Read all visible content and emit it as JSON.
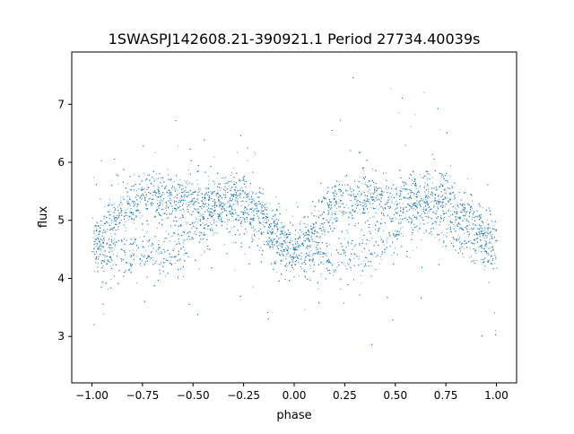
{
  "chart_data": {
    "type": "scatter",
    "title": "1SWASPJ142608.21-390921.1 Period 27734.40039s",
    "xlabel": "phase",
    "ylabel": "flux",
    "xlim": [
      -1.1,
      1.1
    ],
    "ylim": [
      2.2,
      7.9
    ],
    "xticks": [
      -1.0,
      -0.75,
      -0.5,
      -0.25,
      0.0,
      0.25,
      0.5,
      0.75,
      1.0
    ],
    "xtick_labels": [
      "−1.00",
      "−0.75",
      "−0.50",
      "−0.25",
      "0.00",
      "0.25",
      "0.50",
      "0.75",
      "1.00"
    ],
    "yticks": [
      3,
      4,
      5,
      6,
      7
    ],
    "ytick_labels": [
      "3",
      "4",
      "5",
      "6",
      "7"
    ],
    "grid": false,
    "legend": "none",
    "marker_color": "#1f77b4",
    "phase_range": [
      -1.0,
      1.0
    ],
    "flux_range_observed": [
      2.45,
      7.65
    ],
    "trend_upper_band": {
      "x": [
        -1.0,
        -0.75,
        -0.5,
        -0.25,
        0.0,
        0.25,
        0.5,
        0.75,
        1.0
      ],
      "y": [
        4.6,
        5.45,
        5.3,
        5.45,
        4.45,
        5.4,
        5.35,
        5.45,
        4.6
      ]
    },
    "trend_lower_band": {
      "x": [
        -1.0,
        -0.75,
        -0.6,
        -0.5,
        -0.35,
        0.0,
        0.25,
        0.4,
        0.5,
        0.65,
        1.0
      ],
      "y": [
        4.4,
        4.4,
        4.5,
        4.8,
        5.2,
        4.4,
        4.4,
        4.5,
        4.8,
        5.2,
        4.4
      ]
    }
  }
}
